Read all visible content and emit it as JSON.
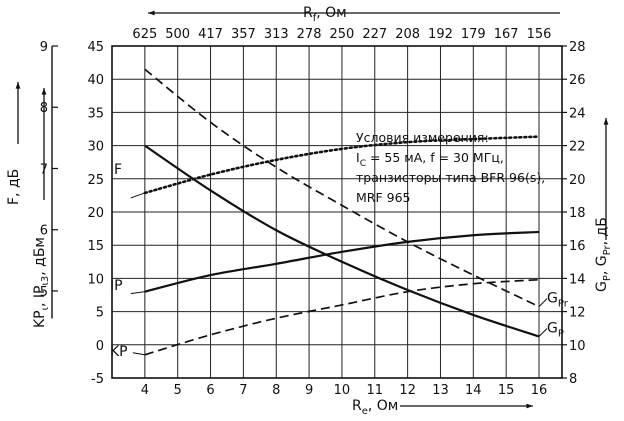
{
  "chart_data": {
    "type": "line",
    "x_axis": {
      "label": "R",
      "label_sub": "e",
      "label_unit": ", Ом",
      "ticks": [
        4,
        5,
        6,
        7,
        8,
        9,
        10,
        11,
        12,
        13,
        14,
        15,
        16
      ],
      "range": [
        3,
        16.7
      ]
    },
    "top_axis": {
      "label": "R",
      "label_sub": "f",
      "label_unit": ", Ом",
      "ticks": [
        "625",
        "500",
        "417",
        "357",
        "313",
        "278",
        "250",
        "227",
        "208",
        "192",
        "179",
        "167",
        "156"
      ]
    },
    "left_axis": {
      "label": "KP",
      "label_sub": "ι",
      "label_mid": ", IP",
      "label_sub2": "ι3",
      "label_unit": ", дБм",
      "ticks": [
        -5,
        0,
        5,
        10,
        15,
        20,
        25,
        30,
        35,
        40,
        45
      ],
      "range": [
        -5,
        45
      ]
    },
    "far_left_axis": {
      "label": "F, дБ",
      "ticks": [
        5,
        6,
        7,
        8,
        9
      ],
      "range": [
        4.5,
        9
      ]
    },
    "right_axis": {
      "label": "G",
      "label_sub": "P",
      "label_mid": ", G",
      "label_sub2": "Pr",
      "label_unit": ", дБ",
      "ticks": [
        8,
        10,
        12,
        14,
        16,
        18,
        20,
        22,
        24,
        26,
        28
      ],
      "range": [
        8,
        28
      ]
    },
    "annotation": {
      "line1": "Условия измерения:",
      "line2": "I",
      "line2_sub": "C",
      "line2_rest": " = 55 мА,  f = 30 МГц,",
      "line3": "транзисторы типа BFR 96(s),",
      "line4": "MRF 965"
    },
    "series": [
      {
        "name": "F",
        "axis": "far_left",
        "style": "dotted",
        "x": [
          4,
          6,
          8,
          10,
          12,
          14,
          16
        ],
        "y": [
          6.6,
          6.9,
          7.14,
          7.32,
          7.43,
          7.48,
          7.52
        ]
      },
      {
        "name": "IP",
        "axis": "left",
        "style": "solid",
        "x": [
          4,
          6,
          8,
          10,
          12,
          14,
          16
        ],
        "y": [
          8,
          10.5,
          12.2,
          14,
          15.5,
          16.5,
          17
        ]
      },
      {
        "name": "KP",
        "axis": "left",
        "style": "dashed",
        "x": [
          4,
          6,
          8,
          10,
          12,
          14,
          16
        ],
        "y": [
          -1.5,
          1.5,
          4,
          6,
          8,
          9.2,
          9.8
        ]
      },
      {
        "name": "G",
        "name_sub": "Pr",
        "axis": "right",
        "style": "dashed",
        "x": [
          4,
          6,
          8,
          10,
          12,
          14,
          16
        ],
        "y": [
          26.6,
          23.4,
          20.7,
          18.4,
          16.2,
          14.2,
          12.3
        ]
      },
      {
        "name": "G",
        "name_sub": "P",
        "axis": "right",
        "style": "solid",
        "x": [
          4,
          6,
          8,
          10,
          12,
          14,
          16
        ],
        "y": [
          22,
          19.3,
          16.9,
          15,
          13.3,
          11.8,
          10.5
        ]
      }
    ]
  }
}
